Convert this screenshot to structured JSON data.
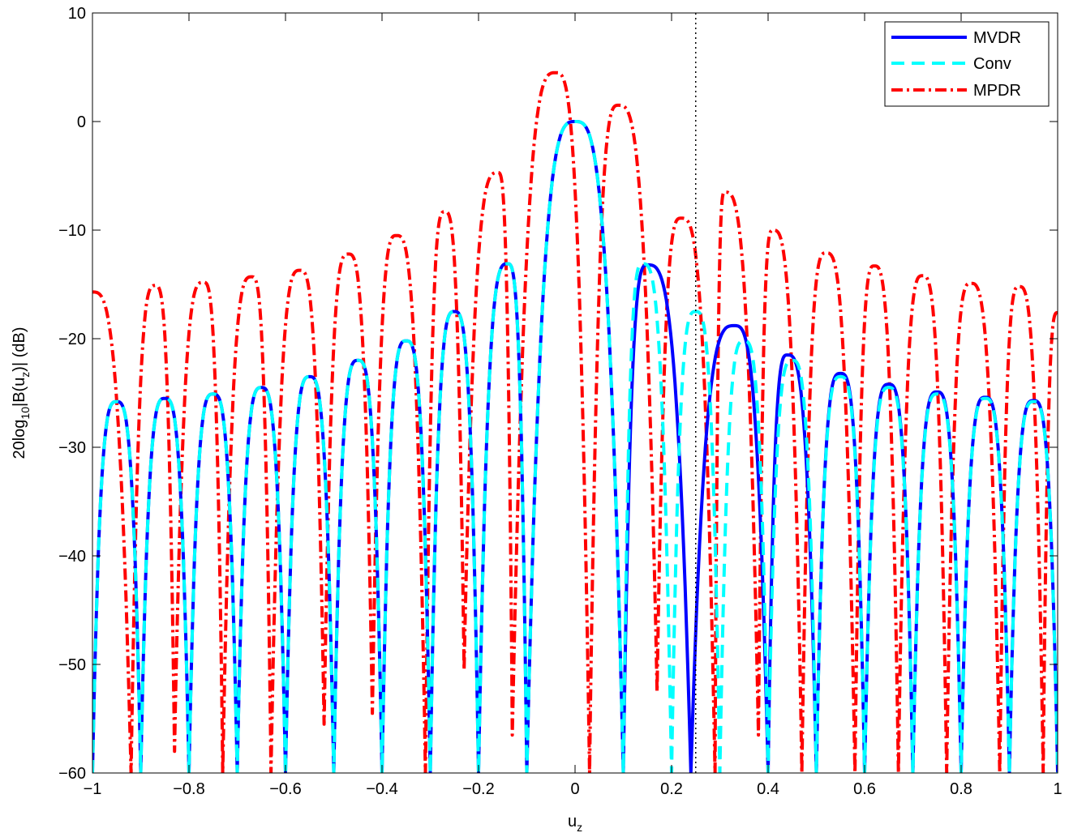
{
  "chart_data": {
    "type": "line",
    "xlabel": "u",
    "xlabel_sub": "z",
    "ylabel_parts": [
      "20log",
      "10",
      "|B(u",
      "z",
      ")| (dB)"
    ],
    "xlim": [
      -1,
      1
    ],
    "ylim": [
      -60,
      10
    ],
    "xticks": [
      -1,
      -0.8,
      -0.6,
      -0.4,
      -0.2,
      0,
      0.2,
      0.4,
      0.6,
      0.8,
      1
    ],
    "xtick_labels": [
      "−1",
      "−0.8",
      "−0.6",
      "−0.4",
      "−0.2",
      "0",
      "0.2",
      "0.4",
      "0.6",
      "0.8",
      "1"
    ],
    "yticks": [
      10,
      0,
      -10,
      -20,
      -30,
      -40,
      -50,
      -60
    ],
    "ytick_labels": [
      "10",
      "0",
      "−10",
      "−20",
      "−30",
      "−40",
      "−50",
      "−60"
    ],
    "grid": false,
    "legend_position": "top-right",
    "reference_line": {
      "x": 0.25,
      "style": "dotted",
      "color": "#000000"
    },
    "series": [
      {
        "name": "MVDR",
        "color": "#0000ff",
        "style": "solid",
        "nulls": [
          -0.9,
          -0.8,
          -0.7,
          -0.6,
          -0.5,
          -0.4,
          -0.3,
          -0.2,
          -0.1,
          0.1,
          0.24,
          0.4,
          0.5,
          0.6,
          0.7,
          0.8,
          0.9,
          1.0
        ],
        "null_depth": -60,
        "peaks": [
          [
            -0.95,
            -25.8
          ],
          [
            -0.85,
            -25.5
          ],
          [
            -0.75,
            -25.1
          ],
          [
            -0.65,
            -24.5
          ],
          [
            -0.55,
            -23.5
          ],
          [
            -0.45,
            -22.0
          ],
          [
            -0.35,
            -20.2
          ],
          [
            -0.25,
            -17.5
          ],
          [
            -0.14,
            -13.1
          ],
          [
            0,
            0
          ],
          [
            0.15,
            -13.2
          ],
          [
            0.33,
            -18.8
          ],
          [
            0.44,
            -21.5
          ],
          [
            0.55,
            -23.2
          ],
          [
            0.65,
            -24.2
          ],
          [
            0.75,
            -24.9
          ],
          [
            0.85,
            -25.4
          ],
          [
            0.95,
            -25.7
          ]
        ]
      },
      {
        "name": "Conv",
        "color": "#00ffff",
        "style": "dashed",
        "nulls": [
          -0.9,
          -0.8,
          -0.7,
          -0.6,
          -0.5,
          -0.4,
          -0.3,
          -0.2,
          -0.1,
          0.1,
          0.2,
          0.3,
          0.4,
          0.5,
          0.6,
          0.7,
          0.8,
          0.9,
          1.0
        ],
        "null_depth": -60,
        "peaks": [
          [
            -0.95,
            -25.8
          ],
          [
            -0.85,
            -25.5
          ],
          [
            -0.75,
            -25.1
          ],
          [
            -0.65,
            -24.5
          ],
          [
            -0.55,
            -23.5
          ],
          [
            -0.45,
            -22.0
          ],
          [
            -0.35,
            -20.2
          ],
          [
            -0.25,
            -17.5
          ],
          [
            -0.14,
            -13.1
          ],
          [
            0,
            0
          ],
          [
            0.14,
            -13.1
          ],
          [
            0.25,
            -17.5
          ],
          [
            0.35,
            -20.2
          ],
          [
            0.45,
            -22.0
          ],
          [
            0.55,
            -23.5
          ],
          [
            0.65,
            -24.5
          ],
          [
            0.75,
            -25.1
          ],
          [
            0.85,
            -25.5
          ],
          [
            0.95,
            -25.8
          ]
        ]
      },
      {
        "name": "MPDR",
        "color": "#ff0000",
        "style": "dashdot",
        "nulls": [
          [
            -0.92,
            -60
          ],
          [
            -0.83,
            -58
          ],
          [
            -0.73,
            -60
          ],
          [
            -0.63,
            -60
          ],
          [
            -0.52,
            -55.5
          ],
          [
            -0.42,
            -54.5
          ],
          [
            -0.31,
            -60
          ],
          [
            -0.23,
            -50.5
          ],
          [
            -0.13,
            -56.5
          ],
          [
            0.03,
            -60
          ],
          [
            0.17,
            -52.5
          ],
          [
            0.29,
            -60
          ],
          [
            0.38,
            -56.5
          ],
          [
            0.47,
            -60
          ],
          [
            0.58,
            -60
          ],
          [
            0.67,
            -60
          ],
          [
            0.77,
            -60
          ],
          [
            0.88,
            -60
          ],
          [
            0.97,
            -60
          ]
        ],
        "peaks": [
          [
            -1,
            -15.7
          ],
          [
            -0.87,
            -15.1
          ],
          [
            -0.77,
            -14.8
          ],
          [
            -0.67,
            -14.3
          ],
          [
            -0.57,
            -13.7
          ],
          [
            -0.47,
            -12.2
          ],
          [
            -0.37,
            -10.5
          ],
          [
            -0.27,
            -8.3
          ],
          [
            -0.16,
            -4.7
          ],
          [
            -0.04,
            4.5
          ],
          [
            0.09,
            1.5
          ],
          [
            0.22,
            -8.9
          ],
          [
            0.31,
            -6.5
          ],
          [
            0.41,
            -10.0
          ],
          [
            0.52,
            -12.1
          ],
          [
            0.62,
            -13.3
          ],
          [
            0.72,
            -14.2
          ],
          [
            0.82,
            -14.9
          ],
          [
            0.92,
            -15.2
          ],
          [
            1.0,
            -17.6
          ]
        ]
      }
    ]
  }
}
